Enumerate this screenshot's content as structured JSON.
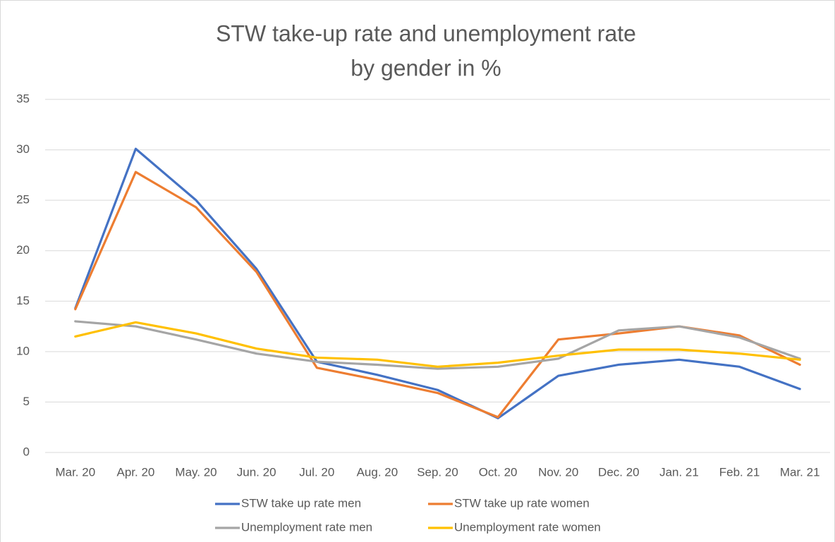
{
  "chart_data": {
    "type": "line",
    "title": [
      "STW take-up rate and unemployment rate",
      "by gender in %"
    ],
    "categories": [
      "Mar. 20",
      "Apr. 20",
      "May. 20",
      "Jun. 20",
      "Jul. 20",
      "Aug. 20",
      "Sep. 20",
      "Oct. 20",
      "Nov. 20",
      "Dec. 20",
      "Jan. 21",
      "Feb. 21",
      "Mar. 21"
    ],
    "series": [
      {
        "name": "STW take up rate men",
        "color": "#4472c4",
        "values": [
          14.3,
          30.1,
          25.0,
          18.2,
          9.0,
          7.7,
          6.2,
          3.4,
          7.6,
          8.7,
          9.2,
          8.5,
          6.3
        ]
      },
      {
        "name": "STW take up rate women",
        "color": "#ed7d31",
        "values": [
          14.2,
          27.8,
          24.3,
          17.9,
          8.4,
          7.2,
          5.9,
          3.5,
          11.2,
          11.8,
          12.5,
          11.6,
          8.7
        ]
      },
      {
        "name": "Unemployment rate men",
        "color": "#a5a5a5",
        "values": [
          13.0,
          12.5,
          11.2,
          9.8,
          9.0,
          8.7,
          8.3,
          8.5,
          9.3,
          12.1,
          12.5,
          11.4,
          9.3
        ]
      },
      {
        "name": "Unemployment rate women",
        "color": "#ffc000",
        "values": [
          11.5,
          12.9,
          11.8,
          10.3,
          9.4,
          9.2,
          8.5,
          8.9,
          9.6,
          10.2,
          10.2,
          9.8,
          9.2
        ]
      }
    ],
    "ylim": [
      0,
      35
    ],
    "yticks": [
      0,
      5,
      10,
      15,
      20,
      25,
      30,
      35
    ],
    "grid": true,
    "legend": "bottom"
  }
}
